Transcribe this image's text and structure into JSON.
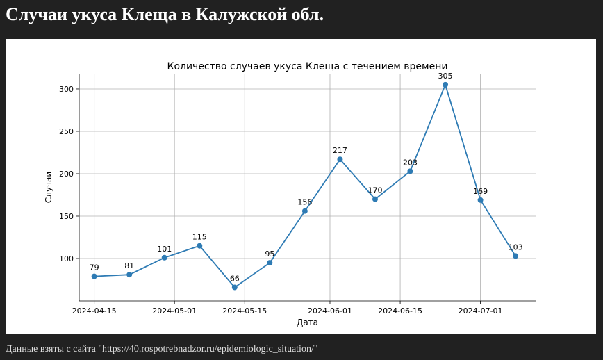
{
  "page": {
    "title": "Случаи укуса Клеща в Калужской обл.",
    "footer": "Данные взяты с сайта \"https://40.rospotrebnadzor.ru/epidemiologic_situation/\""
  },
  "chart_data": {
    "type": "line",
    "title": "Количество случаев укуса Клеща с течением времени",
    "xlabel": "Дата",
    "ylabel": "Случаи",
    "x": [
      "2024-04-15",
      "2024-04-22",
      "2024-04-29",
      "2024-05-06",
      "2024-05-13",
      "2024-05-20",
      "2024-05-27",
      "2024-06-03",
      "2024-06-10",
      "2024-06-17",
      "2024-06-24",
      "2024-07-01",
      "2024-07-08"
    ],
    "values": [
      79,
      81,
      101,
      115,
      66,
      95,
      156,
      217,
      170,
      203,
      305,
      169,
      103
    ],
    "x_ticks": [
      "2024-04-15",
      "2024-05-01",
      "2024-05-15",
      "2024-06-01",
      "2024-06-15",
      "2024-07-01"
    ],
    "y_ticks": [
      100,
      150,
      200,
      250,
      300
    ],
    "ylim": [
      50,
      318
    ],
    "grid": true,
    "line_color": "#2e7bb4",
    "data_labels": true
  }
}
